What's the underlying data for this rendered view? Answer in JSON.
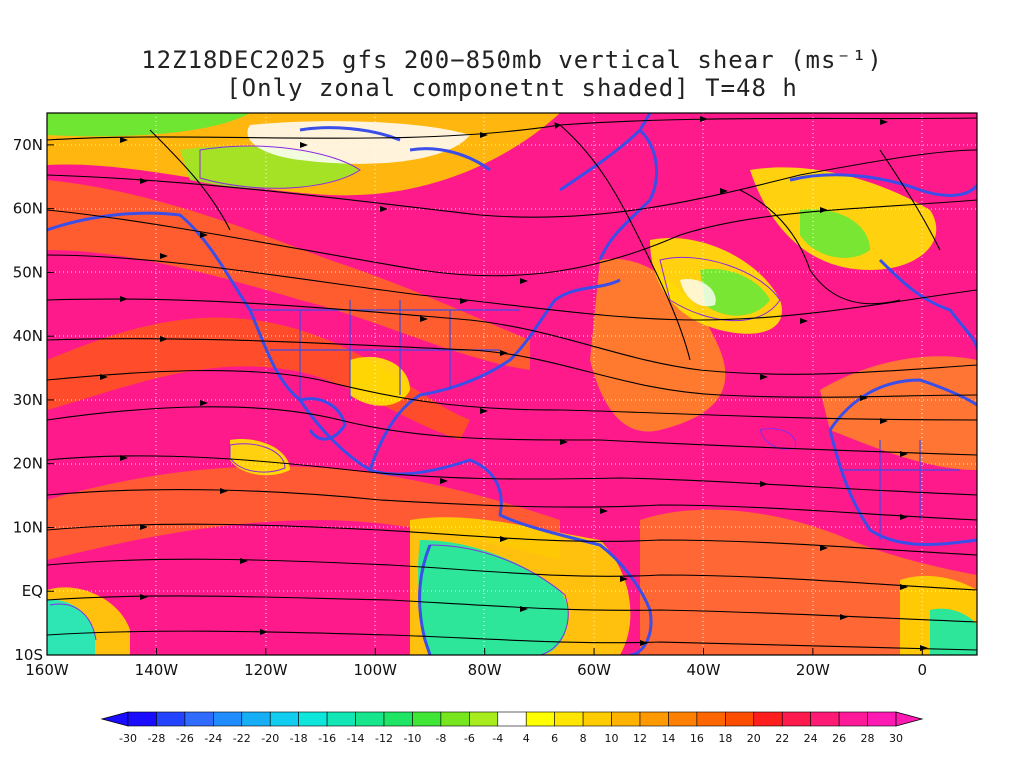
{
  "title": {
    "line1": "12Z18DEC2025 gfs 200−850mb vertical shear (ms⁻¹)",
    "line2": "[Only zonal componetnt shaded] T=48 h"
  },
  "map": {
    "lon_range": [
      -160,
      10
    ],
    "lat_range": [
      -10,
      75
    ],
    "lat_labels": [
      "70N",
      "60N",
      "50N",
      "40N",
      "30N",
      "20N",
      "10N",
      "EQ",
      "10S"
    ],
    "lat_values": [
      70,
      60,
      50,
      40,
      30,
      20,
      10,
      0,
      -10
    ],
    "lon_labels": [
      "160W",
      "140W",
      "120W",
      "100W",
      "80W",
      "60W",
      "40W",
      "20W",
      "0"
    ],
    "lon_values": [
      -160,
      -140,
      -120,
      -100,
      -80,
      -60,
      -40,
      -20,
      0
    ],
    "gridline_color": "#ffffff",
    "coastline_color": "#3b4ee8",
    "streamline_color": "#000000",
    "contour_color": "#8a2be2"
  },
  "colorbar": {
    "labels": [
      "-30",
      "-28",
      "-26",
      "-24",
      "-22",
      "-20",
      "-18",
      "-16",
      "-14",
      "-12",
      "-10",
      "-8",
      "-6",
      "-4",
      "4",
      "6",
      "8",
      "10",
      "12",
      "14",
      "16",
      "18",
      "20",
      "22",
      "24",
      "26",
      "28",
      "30"
    ],
    "colors": [
      "#1a0dff",
      "#2244ff",
      "#2f6bff",
      "#1f8cff",
      "#16aef5",
      "#12cdf0",
      "#0ee6dc",
      "#12e6b4",
      "#17e68c",
      "#1ee664",
      "#3fe636",
      "#78e61e",
      "#a8ec1e",
      "#ffffff",
      "#ffff00",
      "#ffe600",
      "#ffcc00",
      "#ffb300",
      "#ff9900",
      "#ff8000",
      "#ff6600",
      "#ff4d00",
      "#ff1e1e",
      "#ff1a4d",
      "#ff1a75",
      "#ff1a99",
      "#ff1ab3"
    ]
  }
}
